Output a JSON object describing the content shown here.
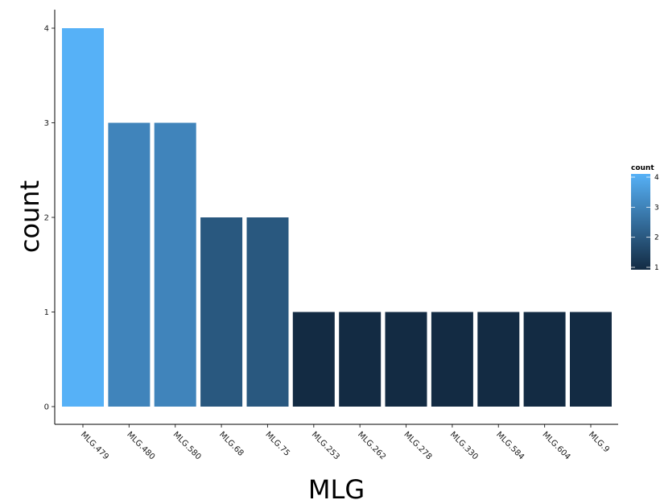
{
  "chart_data": {
    "type": "bar",
    "categories": [
      "MLG.479",
      "MLG.480",
      "MLG.580",
      "MLG.68",
      "MLG.75",
      "MLG.253",
      "MLG.262",
      "MLG.278",
      "MLG.330",
      "MLG.584",
      "MLG.604",
      "MLG.9"
    ],
    "values": [
      4,
      3,
      3,
      2,
      2,
      1,
      1,
      1,
      1,
      1,
      1,
      1
    ],
    "xlabel": "MLG",
    "ylabel": "count",
    "ylim": [
      0,
      4
    ],
    "yticks": [
      "0",
      "1",
      "2",
      "3",
      "4"
    ],
    "grid": false,
    "legend": {
      "title": "count",
      "placement": "right",
      "type": "colorbar",
      "ticks": [
        "1",
        "2",
        "3",
        "4"
      ],
      "low_color": "#132b43",
      "high_color": "#56b1f7"
    }
  }
}
